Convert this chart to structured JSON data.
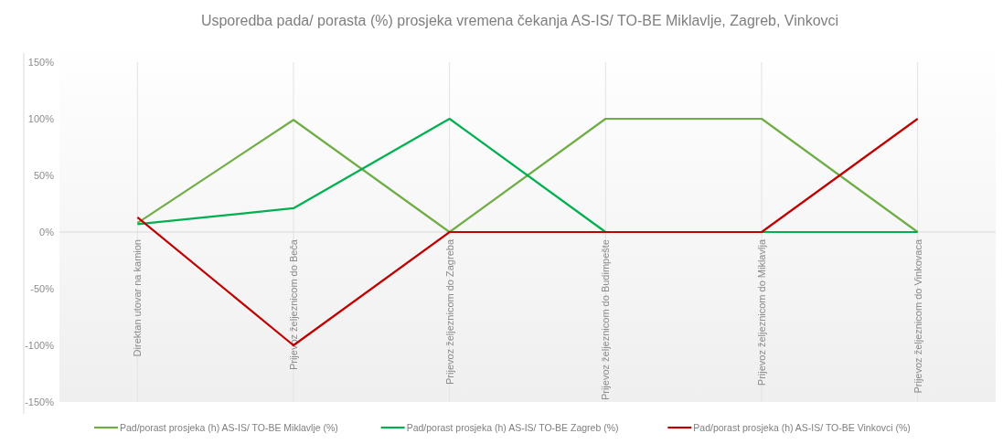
{
  "chart_data": {
    "type": "line",
    "title": "Usporedba pada/ porasta (%) prosjeka vremena čekanja AS-IS/ TO-BE Miklavlje, Zagreb, Vinkovci",
    "categories": [
      "Direktan utovar na kamion",
      "Prijevoz željeznicom do Beča",
      "Prijevoz željeznicom do Zagreba",
      "Prijevoz željeznicom do Budimpešte",
      "Prijevoz željeznicom do Miklavlja",
      "Prijevoz željeznicom do Vinkovaca"
    ],
    "series": [
      {
        "name": "Pad/porast prosjeka (h) AS-IS/ TO-BE Miklavlje (%)",
        "color": "#70ad47",
        "values": [
          8,
          99,
          0,
          100,
          100,
          0
        ]
      },
      {
        "name": "Pad/porast prosjeka (h) AS-IS/ TO-BE Zagreb (%)",
        "color": "#00b050",
        "values": [
          7,
          21,
          100,
          0,
          0,
          0
        ]
      },
      {
        "name": "Pad/porast prosjeka (h) AS-IS/ TO-BE Vinkovci (%)",
        "color": "#c00000",
        "values": [
          13,
          -100,
          0,
          0,
          0,
          100
        ]
      }
    ],
    "ylim": [
      -150,
      150
    ],
    "yticks": [
      {
        "value": -150,
        "label": "-150%"
      },
      {
        "value": -100,
        "label": "-100%"
      },
      {
        "value": -50,
        "label": "-50%"
      },
      {
        "value": 0,
        "label": "0%"
      },
      {
        "value": 50,
        "label": "50%"
      },
      {
        "value": 100,
        "label": "100%"
      },
      {
        "value": 150,
        "label": "150%"
      }
    ],
    "grid": "x",
    "legend": "bottom",
    "marker": "none",
    "line_style": "solid"
  }
}
